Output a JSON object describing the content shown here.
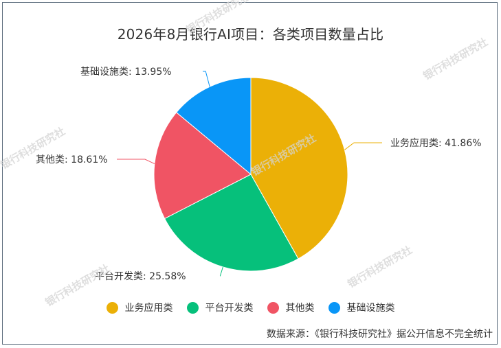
{
  "chart_data": {
    "type": "pie",
    "title": "2026年8月银行AI项目：各类项目数量占比",
    "slices": [
      {
        "name": "业务应用类",
        "value": 41.86,
        "label": "业务应用类: 41.86%",
        "color": "#ebb007"
      },
      {
        "name": "平台开发类",
        "value": 25.58,
        "label": "平台开发类: 25.58%",
        "color": "#06c07b"
      },
      {
        "name": "其他类",
        "value": 18.61,
        "label": "其他类: 18.61%",
        "color": "#f05464"
      },
      {
        "name": "基础设施类",
        "value": 13.95,
        "label": "基础设施类: 13.95%",
        "color": "#0996f7"
      }
    ],
    "legend_position": "bottom"
  },
  "source": "数据来源：《银行科技研究社》据公开信息不完全统计",
  "watermark": "银行科技研究社"
}
